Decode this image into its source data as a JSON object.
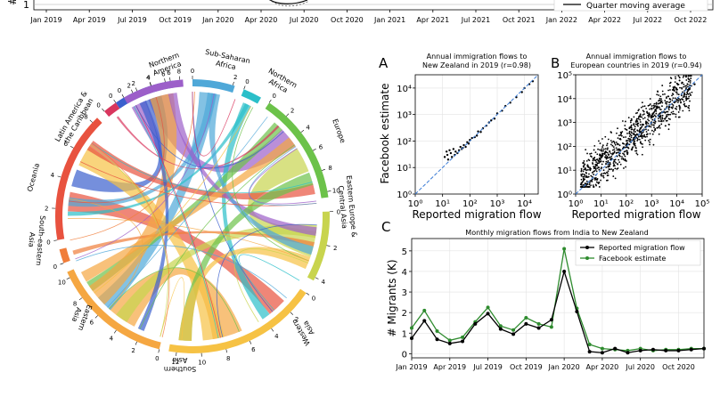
{
  "top_strip": {
    "y_label": "#",
    "y_tick": "1",
    "x_ticks": [
      "Jan 2019",
      "Apr 2019",
      "Jul 2019",
      "Oct 2019",
      "Jan 2020",
      "Apr 2020",
      "Jul 2020",
      "Oct 2020",
      "Jan 2021",
      "Apr 2021",
      "Jul 2021",
      "Oct 2021",
      "Jan 2022",
      "Apr 2022",
      "Jul 2022",
      "Oct 2022"
    ],
    "legend_label": "Quarter moving average"
  },
  "chord": {
    "regions": [
      {
        "name": "Northern America",
        "label_lines": [
          "Northern",
          "America"
        ],
        "color": "#3a5fcd",
        "ticks": [
          "0",
          "2",
          "4",
          "6"
        ]
      },
      {
        "name": "Sub-Saharan Africa",
        "label_lines": [
          "Sub-Saharan",
          "Africa"
        ],
        "color": "#4fa8d8",
        "ticks": [
          "0",
          "2"
        ]
      },
      {
        "name": "Northern Africa",
        "label_lines": [
          "Northern",
          "Africa"
        ],
        "color": "#2bbfc9",
        "ticks": [
          "0"
        ]
      },
      {
        "name": "Europe",
        "label_lines": [
          "Europe"
        ],
        "color": "#6cc24a",
        "ticks": [
          "0",
          "2",
          "4",
          "6",
          "8",
          "10"
        ]
      },
      {
        "name": "Eastern Europe & Central Asia",
        "label_lines": [
          "Eastern Europe &",
          "Central Asia"
        ],
        "color": "#c8d44e",
        "ticks": [
          "0",
          "2",
          "4"
        ]
      },
      {
        "name": "Western Asia",
        "label_lines": [
          "Western",
          "Asia"
        ],
        "color": "#f6c244",
        "ticks": [
          "0",
          "2",
          "4",
          "6",
          "8",
          "10",
          "12"
        ]
      },
      {
        "name": "Southern Asia",
        "label_lines": [
          "Southern",
          "Asia"
        ],
        "color": "#f5a742",
        "ticks": [
          "0",
          "2",
          "4",
          "6",
          "8",
          "10"
        ]
      },
      {
        "name": "Eastern Asia",
        "label_lines": [
          "Eastern",
          "Asia"
        ],
        "color": "#f07d3a",
        "ticks": [
          "0"
        ]
      },
      {
        "name": "South-eastern Asia",
        "label_lines": [
          "South-eastern",
          "Asia"
        ],
        "color": "#e8523f",
        "ticks": [
          "0",
          "2",
          "4",
          "6",
          "8"
        ]
      },
      {
        "name": "Oceania",
        "label_lines": [
          "Oceania"
        ],
        "color": "#d9365e",
        "ticks": [
          "0"
        ]
      },
      {
        "name": "Latin America & the Caribbean",
        "label_lines": [
          "Latin America &",
          "the Caribbean"
        ],
        "color": "#9c5fc9",
        "ticks": [
          "0",
          "2",
          "4",
          "6",
          "8"
        ]
      }
    ]
  },
  "panel_a": {
    "letter": "A",
    "title_lines": [
      "Annual immigration flows to",
      "New Zealand in 2019 (r=0.98)"
    ],
    "xlabel": "Reported migration flow",
    "ylabel": "Facebook estimate",
    "xticks": [
      "10⁰",
      "10¹",
      "10²",
      "10³",
      "10⁴"
    ],
    "yticks": [
      "10⁰",
      "10¹",
      "10²",
      "10³",
      "10⁴"
    ]
  },
  "panel_b": {
    "letter": "B",
    "title_lines": [
      "Annual immigration flows to",
      "European countries in 2019 (r=0.94)"
    ],
    "xlabel": "Reported migration flow",
    "xticks": [
      "10⁰",
      "10¹",
      "10²",
      "10³",
      "10⁴",
      "10⁵"
    ],
    "yticks": [
      "10⁰",
      "10¹",
      "10²",
      "10³",
      "10⁴",
      "10⁵"
    ]
  },
  "panel_c": {
    "letter": "C",
    "title": "Monthly migration flows from India to New Zealand",
    "ylabel": "# Migrants (K)",
    "xticks": [
      "Jan 2019",
      "Apr 2019",
      "Jul 2019",
      "Oct 2019",
      "Jan 2020",
      "Apr 2020",
      "Jul 2020",
      "Oct 2020"
    ],
    "yticks": [
      "0",
      "1",
      "2",
      "3",
      "4",
      "5"
    ]
  },
  "chart_data": [
    {
      "type": "line",
      "title": "Monthly migration flows from India to New Zealand",
      "ylabel": "# Migrants (K)",
      "ylim": [
        -0.2,
        5.6
      ],
      "grid": true,
      "legend_position": "top-right",
      "x": [
        "2019-01",
        "2019-02",
        "2019-03",
        "2019-04",
        "2019-05",
        "2019-06",
        "2019-07",
        "2019-08",
        "2019-09",
        "2019-10",
        "2019-11",
        "2019-12",
        "2020-01",
        "2020-02",
        "2020-03",
        "2020-04",
        "2020-05",
        "2020-06",
        "2020-07",
        "2020-08",
        "2020-09",
        "2020-10",
        "2020-11",
        "2020-12"
      ],
      "series": [
        {
          "name": "Reported migration flow",
          "color": "#000000",
          "values": [
            0.75,
            1.6,
            0.7,
            0.5,
            0.6,
            1.45,
            1.95,
            1.2,
            0.95,
            1.45,
            1.25,
            1.65,
            4.0,
            2.05,
            0.1,
            0.05,
            0.25,
            0.05,
            0.15,
            0.2,
            0.15,
            0.15,
            0.2,
            0.25
          ]
        },
        {
          "name": "Facebook estimate",
          "color": "#2e8b2e",
          "values": [
            1.25,
            2.1,
            1.1,
            0.65,
            0.8,
            1.55,
            2.25,
            1.35,
            1.15,
            1.75,
            1.45,
            1.3,
            5.1,
            2.2,
            0.45,
            0.25,
            0.2,
            0.15,
            0.25,
            0.15,
            0.2,
            0.2,
            0.25,
            0.25
          ]
        }
      ]
    },
    {
      "type": "scatter",
      "title": "Annual immigration flows to New Zealand in 2019 (r=0.98)",
      "xlabel": "Reported migration flow",
      "ylabel": "Facebook estimate",
      "x_scale": "log",
      "y_scale": "log",
      "xlim": [
        1,
        30000
      ],
      "ylim": [
        1,
        30000
      ],
      "grid": true,
      "points_x": [
        12,
        14,
        15,
        16,
        18,
        20,
        22,
        25,
        28,
        30,
        35,
        40,
        45,
        50,
        55,
        60,
        70,
        80,
        90,
        100,
        120,
        150,
        180,
        200,
        250,
        300,
        400,
        500,
        600,
        800,
        1000,
        1500,
        2000,
        3000,
        5000,
        8000,
        10000,
        15000,
        20000
      ],
      "points_y": [
        25,
        40,
        30,
        20,
        45,
        35,
        25,
        50,
        30,
        40,
        35,
        45,
        60,
        50,
        55,
        70,
        60,
        90,
        80,
        110,
        130,
        140,
        160,
        230,
        220,
        300,
        380,
        500,
        600,
        700,
        1100,
        1400,
        2100,
        2800,
        4500,
        7000,
        10000,
        14000,
        18000
      ]
    },
    {
      "type": "scatter",
      "title": "Annual immigration flows to European countries in 2019 (r=0.94)",
      "xlabel": "Reported migration flow",
      "x_scale": "log",
      "y_scale": "log",
      "xlim": [
        1,
        100000
      ],
      "ylim": [
        1,
        100000
      ],
      "grid": true,
      "points_x": [
        2,
        3,
        5,
        8,
        10,
        15,
        20,
        30,
        50,
        80,
        100,
        150,
        200,
        300,
        500,
        800,
        1000,
        2000,
        3000,
        5000,
        8000,
        10000,
        20000,
        30000,
        50000
      ],
      "points_y": [
        20,
        15,
        30,
        25,
        40,
        35,
        45,
        50,
        70,
        90,
        120,
        150,
        220,
        300,
        500,
        700,
        1000,
        1800,
        2800,
        4500,
        7000,
        9000,
        15000,
        25000,
        40000
      ]
    }
  ]
}
